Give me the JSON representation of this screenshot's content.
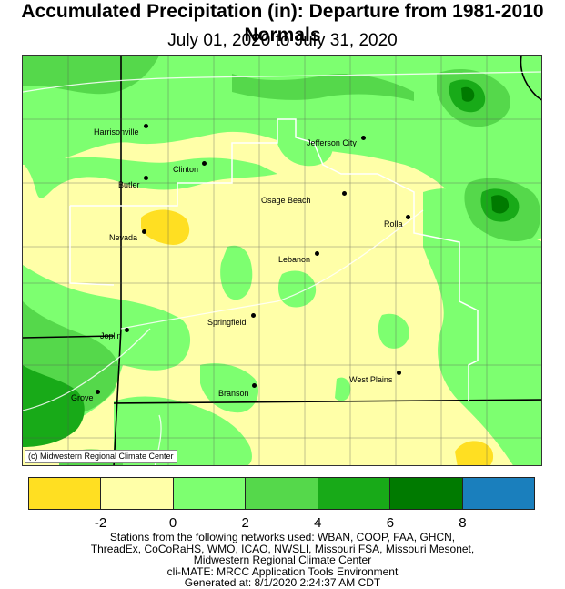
{
  "title": "Accumulated Precipitation (in): Departure from 1981-2010 Normals",
  "subtitle": "July 01, 2020 to July 31, 2020",
  "credit": "(c) Midwestern Regional Climate Center",
  "cities": [
    {
      "name": "Harrisonville"
    },
    {
      "name": "Jefferson City"
    },
    {
      "name": "Clinton"
    },
    {
      "name": "Butler"
    },
    {
      "name": "Osage Beach"
    },
    {
      "name": "Rolla"
    },
    {
      "name": "Nevada"
    },
    {
      "name": "Lebanon"
    },
    {
      "name": "Springfield"
    },
    {
      "name": "Joplin"
    },
    {
      "name": "West Plains"
    },
    {
      "name": "Grove"
    },
    {
      "name": "Branson"
    }
  ],
  "legend": {
    "colors": [
      "#ffdf22",
      "#ffffa8",
      "#7dff70",
      "#55d84b",
      "#18aa18",
      "#007a00",
      "#1a7fbd"
    ],
    "ticks": [
      "-2",
      "0",
      "2",
      "4",
      "6",
      "8"
    ]
  },
  "footer": [
    "Stations from the following networks used: WBAN, COOP, FAA, GHCN,",
    "ThreadEx, CoCoRaHS, WMO, ICAO, NWSLI, Missouri FSA, Missouri Mesonet,",
    "Midwestern Regional Climate Center",
    "cli-MATE: MRCC Application Tools Environment",
    "Generated at: 8/1/2020 2:24:37 AM CDT"
  ]
}
